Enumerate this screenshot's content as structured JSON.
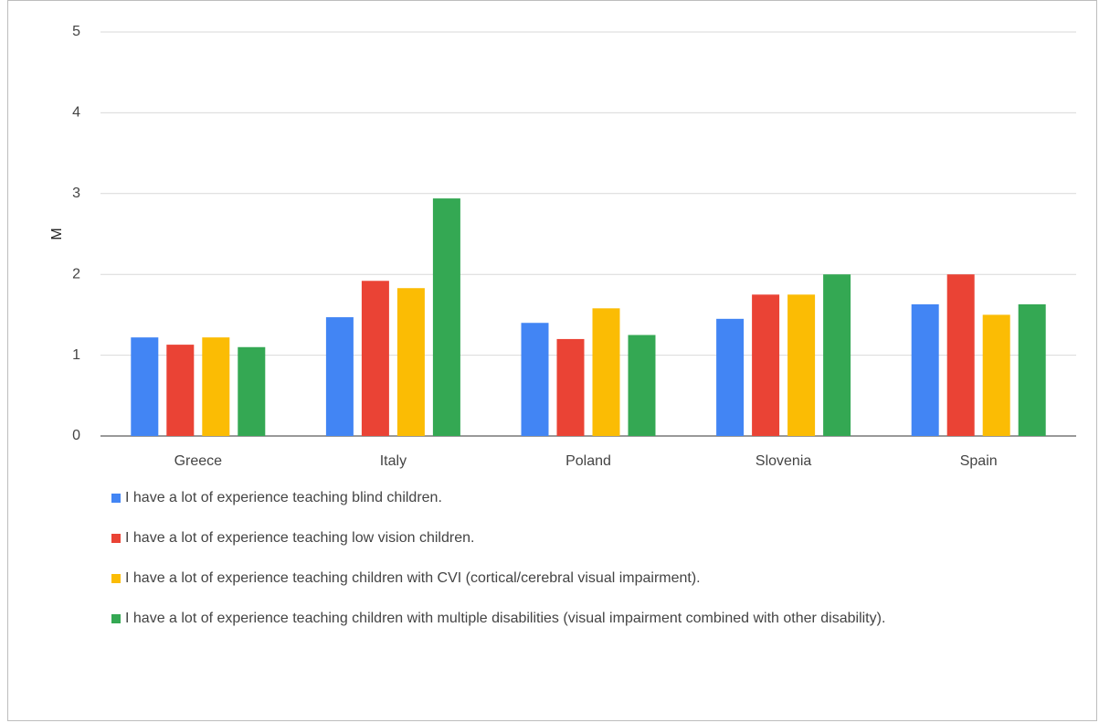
{
  "chart_data": {
    "type": "bar",
    "title": "",
    "xlabel": "",
    "ylabel": "M",
    "ylim": [
      0,
      5
    ],
    "yticks": [
      "0",
      "1",
      "2",
      "3",
      "4",
      "5"
    ],
    "grid": true,
    "legend_position": "bottom",
    "categories": [
      "Greece",
      "Italy",
      "Poland",
      "Slovenia",
      "Spain"
    ],
    "series": [
      {
        "name": "I have a lot of experience teaching blind children.",
        "color": "#4285f4",
        "values": [
          1.22,
          1.47,
          1.4,
          1.45,
          1.63
        ]
      },
      {
        "name": "I have a lot of experience teaching low vision children.",
        "color": "#ea4335",
        "values": [
          1.13,
          1.92,
          1.2,
          1.75,
          2.0
        ]
      },
      {
        "name": "I have a lot of experience teaching children with CVI (cortical/cerebral visual impairment).",
        "color": "#fbbc04",
        "values": [
          1.22,
          1.83,
          1.58,
          1.75,
          1.5
        ]
      },
      {
        "name": "I have a lot of experience teaching children with multiple disabilities (visual impairment combined with other disability).",
        "color": "#34a853",
        "values": [
          1.1,
          2.94,
          1.25,
          2.0,
          1.63
        ]
      }
    ]
  }
}
